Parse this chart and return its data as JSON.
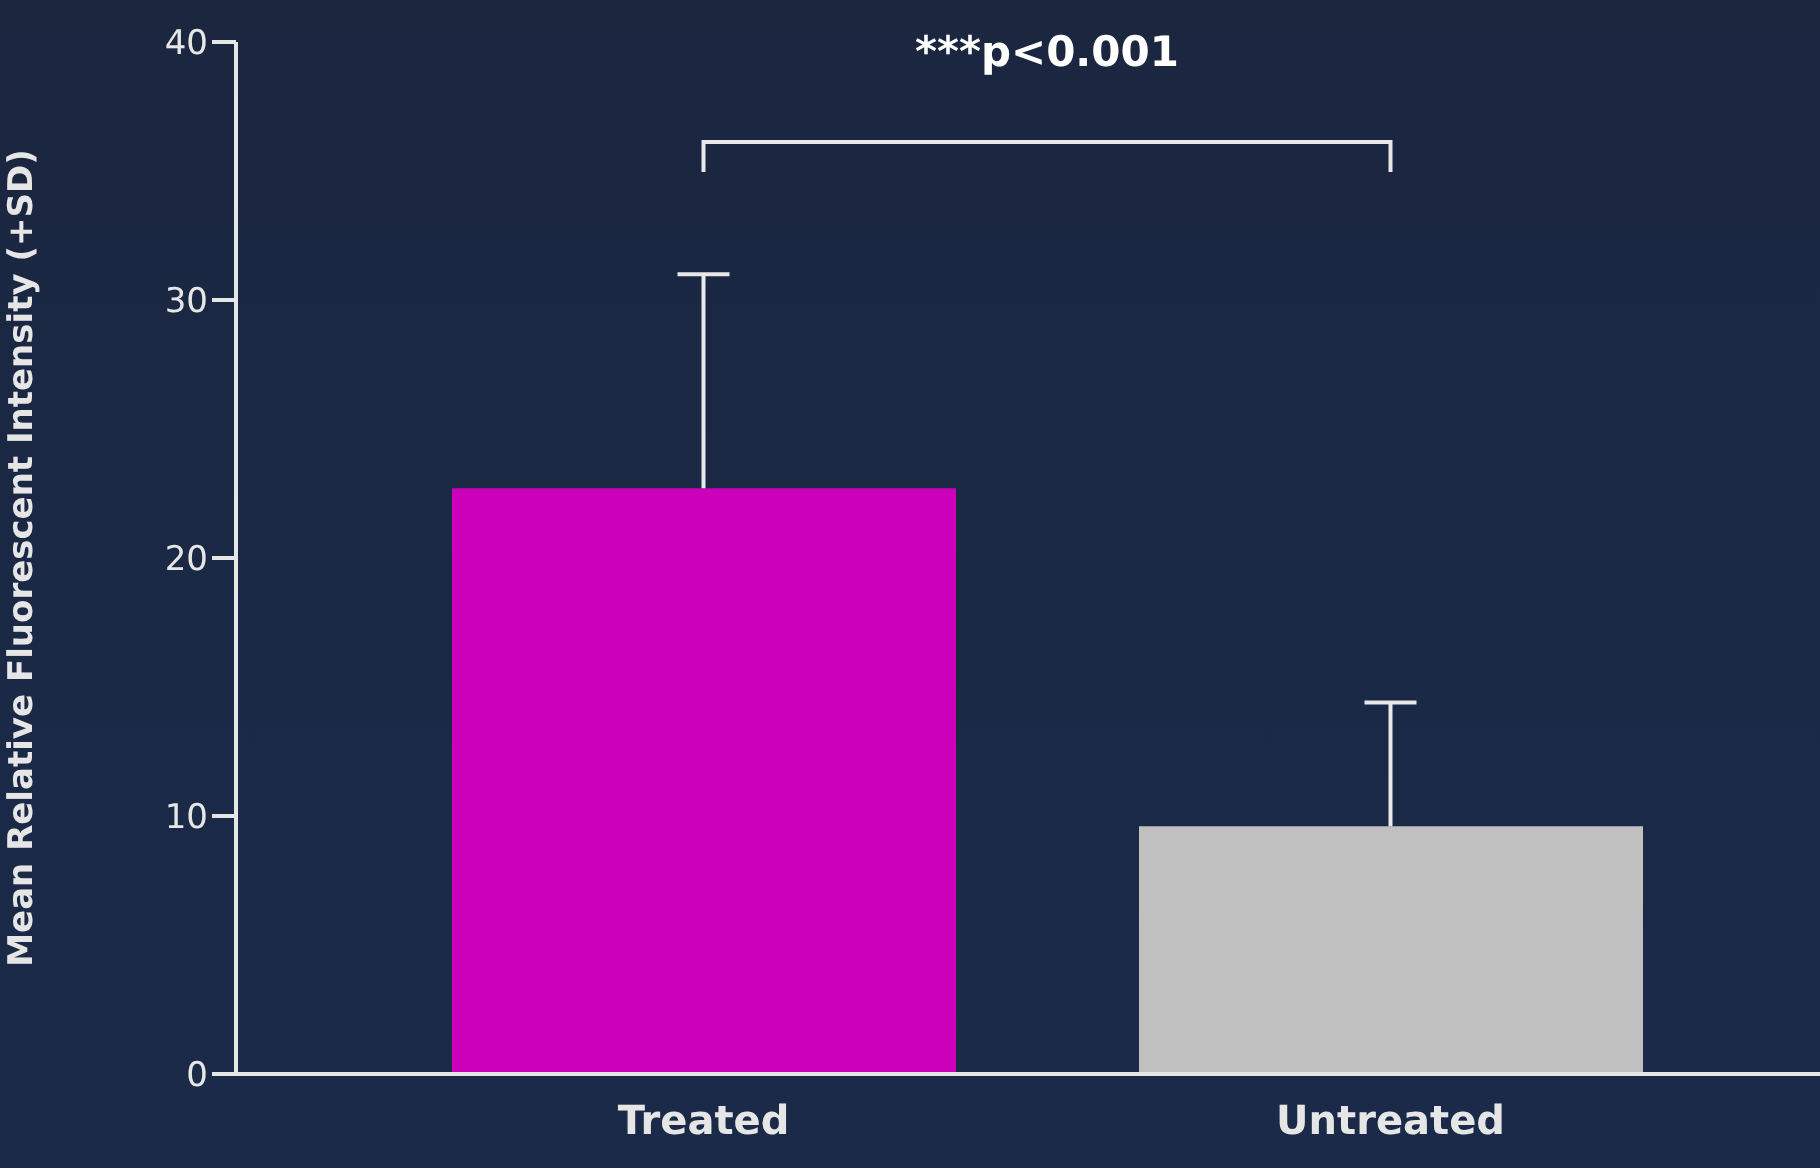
{
  "chart_data": {
    "type": "bar",
    "ylabel": "Mean Relative Fluorescent Intensity (+SD)",
    "categories": [
      "Treated",
      "Untreated"
    ],
    "values": [
      22.7,
      9.6
    ],
    "colors": [
      "#cc00bb",
      "#c0c0c0"
    ],
    "errors": [
      [
        22.7,
        31.0
      ],
      [
        9.6,
        14.4
      ]
    ],
    "ylim": [
      0,
      40
    ],
    "yticks": [
      0,
      10,
      20,
      30,
      40
    ],
    "annotations": [
      "***p<0.001"
    ]
  }
}
